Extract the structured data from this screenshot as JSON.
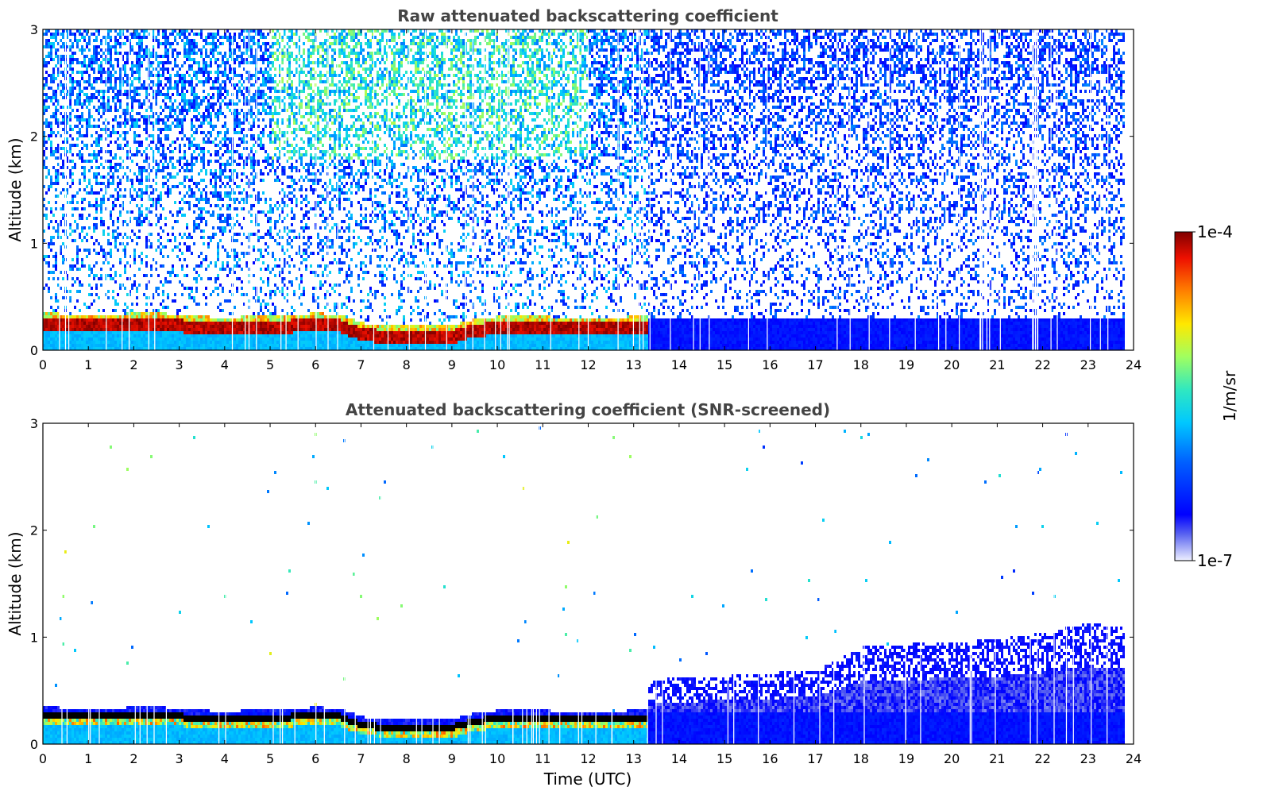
{
  "chart_data": [
    {
      "type": "heatmap",
      "title": "Raw attenuated backscattering coefficient",
      "xlabel": "",
      "ylabel": "Altitude (km)",
      "xlim": [
        0,
        24
      ],
      "ylim": [
        0,
        3
      ],
      "xticks": [
        0,
        1,
        2,
        3,
        4,
        5,
        6,
        7,
        8,
        9,
        10,
        11,
        12,
        13,
        14,
        15,
        16,
        17,
        18,
        19,
        20,
        21,
        22,
        23,
        24
      ],
      "yticks": [
        0,
        1,
        2,
        3
      ],
      "layer_top_km": {
        "hours": [
          0,
          0.5,
          1,
          1.5,
          2,
          2.5,
          3,
          3.5,
          4,
          4.5,
          5,
          5.5,
          6,
          6.5,
          7,
          7.5,
          8,
          8.5,
          9,
          9.5,
          10,
          10.5,
          11,
          11.5,
          12,
          12.5,
          13,
          13.3
        ],
        "top": [
          0.32,
          0.3,
          0.3,
          0.3,
          0.31,
          0.31,
          0.3,
          0.28,
          0.27,
          0.28,
          0.28,
          0.3,
          0.31,
          0.3,
          0.22,
          0.2,
          0.2,
          0.2,
          0.2,
          0.26,
          0.28,
          0.28,
          0.28,
          0.27,
          0.27,
          0.27,
          0.28,
          0.28
        ]
      },
      "noise_level": "high"
    },
    {
      "type": "heatmap",
      "title": "Attenuated backscattering coefficient (SNR-screened)",
      "xlabel": "Time (UTC)",
      "ylabel": "Altitude (km)",
      "xlim": [
        0,
        24
      ],
      "ylim": [
        0,
        3
      ],
      "xticks": [
        0,
        1,
        2,
        3,
        4,
        5,
        6,
        7,
        8,
        9,
        10,
        11,
        12,
        13,
        14,
        15,
        16,
        17,
        18,
        19,
        20,
        21,
        22,
        23,
        24
      ],
      "yticks": [
        0,
        1,
        2,
        3
      ],
      "layer_top_km": {
        "hours": [
          0,
          0.5,
          1,
          1.5,
          2,
          2.5,
          3,
          3.5,
          4,
          4.5,
          5,
          5.5,
          6,
          6.5,
          7,
          7.5,
          8,
          8.5,
          9,
          9.5,
          10,
          10.5,
          11,
          11.5,
          12,
          12.5,
          13,
          13.3
        ],
        "top": [
          0.32,
          0.3,
          0.3,
          0.3,
          0.31,
          0.31,
          0.3,
          0.28,
          0.27,
          0.28,
          0.28,
          0.3,
          0.31,
          0.3,
          0.22,
          0.2,
          0.2,
          0.2,
          0.2,
          0.26,
          0.28,
          0.28,
          0.28,
          0.27,
          0.27,
          0.27,
          0.28,
          0.28
        ]
      },
      "boundary_layer_top_km": {
        "hours": [
          13.5,
          15,
          16,
          17,
          18,
          19,
          20,
          21,
          22,
          23,
          23.8
        ],
        "top": [
          0.62,
          0.65,
          0.68,
          0.7,
          0.92,
          0.95,
          0.97,
          1.0,
          1.05,
          1.15,
          1.1
        ]
      },
      "noise_level": "screened"
    }
  ],
  "colorbar": {
    "label": "1/m/sr",
    "max_label": "1e-4",
    "min_label": "1e-7",
    "scale": "log",
    "colormap": "jet"
  }
}
